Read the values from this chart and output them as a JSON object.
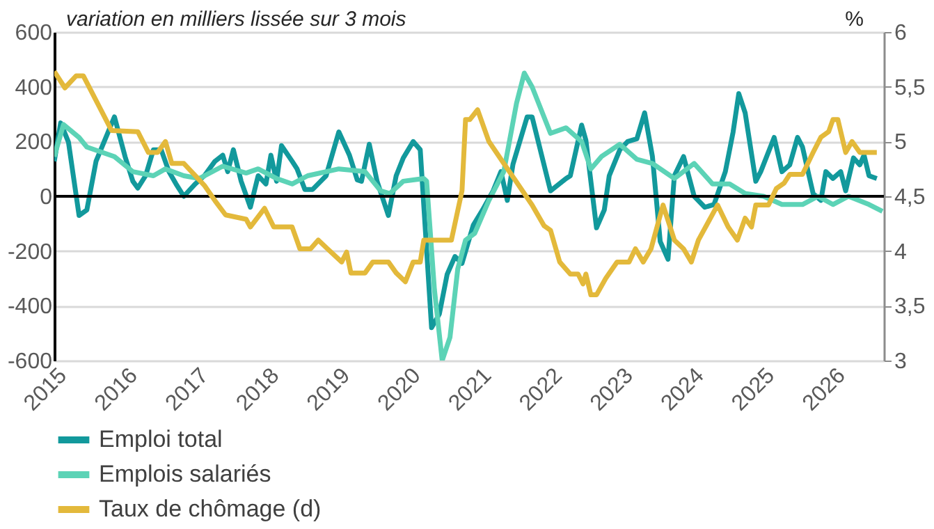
{
  "chart_data": {
    "type": "line",
    "ylabel": "variation en milliers lissée sur 3 mois",
    "y2label": "%",
    "xlim": [
      2015,
      2026.72
    ],
    "xticks": [
      2015,
      2016,
      2017,
      2018,
      2019,
      2020,
      2021,
      2022,
      2023,
      2024,
      2025,
      2026
    ],
    "ylim": [
      -600,
      600
    ],
    "yticks": [
      -600,
      -400,
      -200,
      0,
      200,
      400,
      600
    ],
    "y2lim": [
      3,
      6
    ],
    "y2ticks": [
      3,
      {
        "value": 3.5,
        "label": "3,5"
      },
      4,
      {
        "value": 4.5,
        "label": "4,5"
      },
      5,
      {
        "value": 5.5,
        "label": "5,5"
      },
      6
    ],
    "grid": "y",
    "legend": "bottom left",
    "ref_lines": [
      {
        "axis": "y",
        "value": 0,
        "color": "#000000"
      }
    ],
    "series": [
      {
        "name": "Emploi total",
        "color": "#12999c",
        "x": [
          2015.0,
          2015.09,
          2015.2,
          2015.35,
          2015.46,
          2015.59,
          2015.85,
          2016.0,
          2016.11,
          2016.18,
          2016.29,
          2016.4,
          2016.51,
          2016.62,
          2016.72,
          2016.83,
          2016.99,
          2017.12,
          2017.27,
          2017.38,
          2017.45,
          2017.53,
          2017.64,
          2017.77,
          2017.88,
          2017.99,
          2018.06,
          2018.14,
          2018.21,
          2018.36,
          2018.43,
          2018.54,
          2018.65,
          2018.84,
          2019.02,
          2019.17,
          2019.28,
          2019.34,
          2019.45,
          2019.56,
          2019.72,
          2019.83,
          2019.93,
          2020.07,
          2020.17,
          2020.33,
          2020.44,
          2020.55,
          2020.66,
          2020.76,
          2020.92,
          2021.05,
          2021.2,
          2021.31,
          2021.4,
          2021.48,
          2021.68,
          2021.75,
          2022.01,
          2022.23,
          2022.29,
          2022.45,
          2022.51,
          2022.66,
          2022.77,
          2022.84,
          2022.99,
          2023.1,
          2023.23,
          2023.34,
          2023.45,
          2023.56,
          2023.67,
          2023.76,
          2023.89,
          2024.04,
          2024.19,
          2024.32,
          2024.48,
          2024.59,
          2024.67,
          2024.76,
          2024.91,
          2024.98,
          2025.17,
          2025.28,
          2025.39,
          2025.5,
          2025.57,
          2025.72,
          2025.83,
          2025.9,
          2026.0,
          2026.11,
          2026.18,
          2026.29,
          2026.38,
          2026.44,
          2026.51,
          2026.62
        ],
        "values": [
          128,
          268,
          198,
          -70,
          -50,
          128,
          290,
          145,
          55,
          30,
          75,
          170,
          170,
          90,
          45,
          0,
          45,
          75,
          128,
          150,
          90,
          170,
          55,
          -40,
          75,
          45,
          150,
          55,
          185,
          128,
          100,
          25,
          25,
          75,
          235,
          150,
          60,
          55,
          190,
          55,
          -70,
          75,
          140,
          200,
          170,
          -480,
          -430,
          -285,
          -220,
          -245,
          -105,
          -50,
          20,
          90,
          -15,
          117,
          290,
          290,
          20,
          65,
          75,
          260,
          205,
          -115,
          -50,
          75,
          170,
          200,
          210,
          305,
          145,
          -165,
          -230,
          75,
          145,
          0,
          -40,
          -30,
          90,
          235,
          375,
          305,
          55,
          90,
          215,
          90,
          115,
          215,
          180,
          10,
          -15,
          90,
          65,
          90,
          20,
          140,
          115,
          150,
          75,
          65
        ]
      },
      {
        "name": "Emplois salariés",
        "color": "#5cd3b6",
        "x": [
          2015.0,
          2015.13,
          2015.35,
          2015.46,
          2015.85,
          2016.11,
          2016.4,
          2016.57,
          2016.83,
          2017.05,
          2017.38,
          2017.71,
          2017.88,
          2018.14,
          2018.36,
          2018.58,
          2019.02,
          2019.39,
          2019.61,
          2019.74,
          2019.93,
          2020.22,
          2020.26,
          2020.37,
          2020.48,
          2020.59,
          2020.7,
          2020.81,
          2020.94,
          2021.14,
          2021.35,
          2021.53,
          2021.64,
          2021.75,
          2022.01,
          2022.23,
          2022.45,
          2022.58,
          2022.73,
          2022.99,
          2023.23,
          2023.45,
          2023.76,
          2024.04,
          2024.3,
          2024.54,
          2024.76,
          2025.02,
          2025.28,
          2025.57,
          2025.79,
          2026.0,
          2026.22,
          2026.51,
          2026.7
        ],
        "values": [
          145,
          262,
          215,
          180,
          145,
          90,
          75,
          100,
          75,
          65,
          110,
          85,
          100,
          65,
          45,
          75,
          100,
          90,
          20,
          10,
          55,
          65,
          55,
          -340,
          -600,
          -515,
          -265,
          -160,
          -135,
          -15,
          90,
          340,
          450,
          400,
          230,
          250,
          200,
          100,
          145,
          190,
          135,
          120,
          65,
          120,
          45,
          45,
          10,
          0,
          -30,
          -30,
          0,
          -30,
          0,
          -30,
          -55
        ]
      },
      {
        "name": "Taux de chômage (d)",
        "color": "#e3b93b",
        "axis": "y2",
        "x": [
          2015.0,
          2015.15,
          2015.31,
          2015.41,
          2015.81,
          2016.18,
          2016.33,
          2016.46,
          2016.57,
          2016.66,
          2016.83,
          2016.99,
          2017.12,
          2017.27,
          2017.42,
          2017.71,
          2017.77,
          2017.97,
          2018.1,
          2018.36,
          2018.47,
          2018.62,
          2018.73,
          2018.86,
          2019.06,
          2019.13,
          2019.19,
          2019.39,
          2019.5,
          2019.72,
          2019.83,
          2019.96,
          2020.07,
          2020.17,
          2020.22,
          2020.44,
          2020.61,
          2020.76,
          2020.81,
          2020.87,
          2020.98,
          2021.14,
          2021.35,
          2021.53,
          2021.75,
          2021.92,
          2022.01,
          2022.14,
          2022.29,
          2022.4,
          2022.47,
          2022.51,
          2022.58,
          2022.66,
          2022.79,
          2022.95,
          2023.12,
          2023.21,
          2023.32,
          2023.43,
          2023.6,
          2023.76,
          2023.89,
          2024.0,
          2024.1,
          2024.37,
          2024.52,
          2024.65,
          2024.76,
          2024.85,
          2024.91,
          2025.09,
          2025.2,
          2025.31,
          2025.39,
          2025.57,
          2025.72,
          2025.83,
          2025.94,
          2026.0,
          2026.07,
          2026.18,
          2026.27,
          2026.38,
          2026.62
        ],
        "values": [
          5.64,
          5.49,
          5.6,
          5.6,
          5.1,
          5.09,
          4.9,
          4.9,
          5.0,
          4.8,
          4.8,
          4.69,
          4.6,
          4.46,
          4.33,
          4.29,
          4.22,
          4.39,
          4.22,
          4.22,
          4.02,
          4.02,
          4.1,
          4.02,
          3.9,
          3.99,
          3.8,
          3.8,
          3.9,
          3.9,
          3.8,
          3.72,
          3.9,
          3.9,
          4.1,
          4.1,
          4.1,
          4.55,
          5.2,
          5.2,
          5.29,
          5.0,
          4.8,
          4.63,
          4.42,
          4.23,
          4.19,
          3.9,
          3.79,
          3.79,
          3.7,
          3.79,
          3.6,
          3.6,
          3.75,
          3.9,
          3.9,
          4.02,
          3.9,
          4.02,
          4.42,
          4.1,
          4.02,
          3.9,
          4.1,
          4.42,
          4.22,
          4.1,
          4.3,
          4.22,
          4.42,
          4.42,
          4.57,
          4.62,
          4.7,
          4.7,
          4.9,
          5.04,
          5.09,
          5.2,
          5.2,
          4.9,
          5.0,
          4.9,
          4.9
        ]
      }
    ]
  }
}
